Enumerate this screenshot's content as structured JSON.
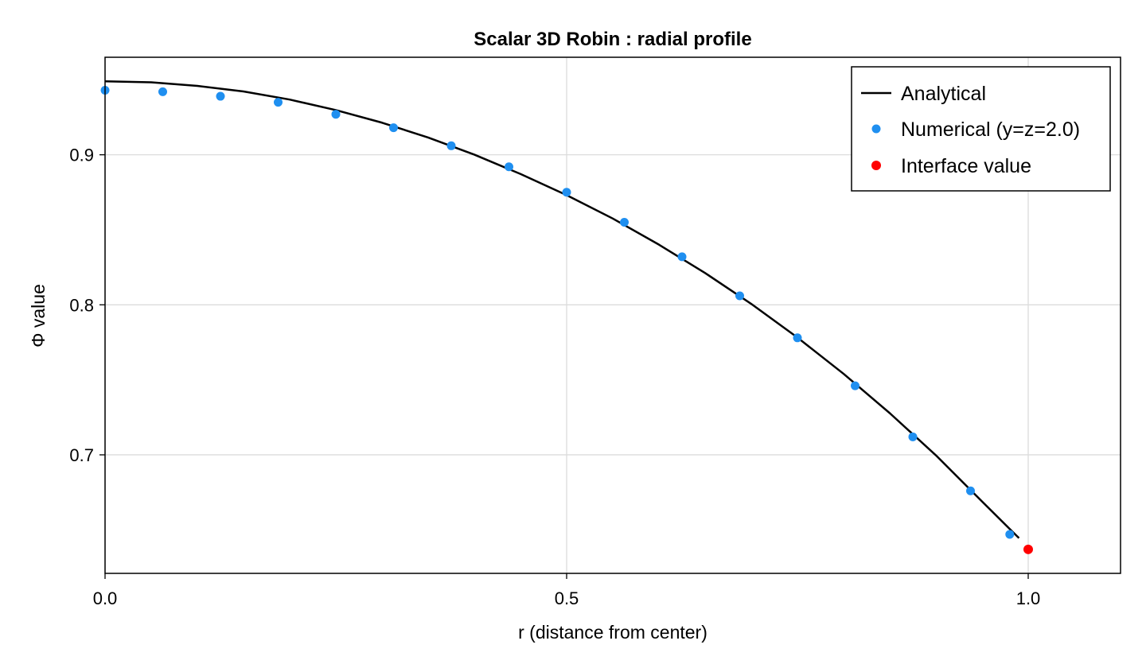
{
  "chart_data": {
    "type": "line",
    "title": "Scalar 3D Robin : radial profile",
    "xlabel": "r (distance from center)",
    "ylabel": "Φ value",
    "xlim": [
      0.0,
      1.1
    ],
    "ylim": [
      0.621,
      0.965
    ],
    "x_ticks": [
      0.0,
      0.5,
      1.0
    ],
    "x_tick_labels": [
      "0.0",
      "0.5",
      "1.0"
    ],
    "y_ticks": [
      0.7,
      0.8,
      0.9
    ],
    "y_tick_labels": [
      "0.7",
      "0.8",
      "0.9"
    ],
    "grid": true,
    "legend_position": "top-right",
    "series": [
      {
        "name": "Analytical",
        "kind": "line",
        "color": "#000000",
        "x": [
          0.0,
          0.05,
          0.1,
          0.15,
          0.2,
          0.25,
          0.3,
          0.35,
          0.4,
          0.45,
          0.5,
          0.55,
          0.6,
          0.65,
          0.7,
          0.75,
          0.8,
          0.85,
          0.9,
          0.95,
          0.99
        ],
        "values": [
          0.949,
          0.9483,
          0.9459,
          0.9422,
          0.9368,
          0.9298,
          0.9214,
          0.9115,
          0.9001,
          0.8872,
          0.8731,
          0.8575,
          0.8401,
          0.8212,
          0.8006,
          0.7782,
          0.754,
          0.7278,
          0.6997,
          0.6689,
          0.6445
        ]
      },
      {
        "name": "Numerical (y=z=2.0)",
        "kind": "scatter",
        "color": "#1f8ff0",
        "x": [
          0.0,
          0.0625,
          0.125,
          0.1875,
          0.25,
          0.3125,
          0.375,
          0.4375,
          0.5,
          0.5625,
          0.625,
          0.6875,
          0.75,
          0.8125,
          0.875,
          0.9375,
          0.98
        ],
        "values": [
          0.943,
          0.942,
          0.939,
          0.935,
          0.927,
          0.918,
          0.906,
          0.892,
          0.875,
          0.855,
          0.832,
          0.806,
          0.778,
          0.746,
          0.712,
          0.676,
          0.647
        ]
      },
      {
        "name": "Interface value",
        "kind": "scatter",
        "color": "#ff0000",
        "x": [
          1.0
        ],
        "values": [
          0.637
        ]
      }
    ]
  }
}
